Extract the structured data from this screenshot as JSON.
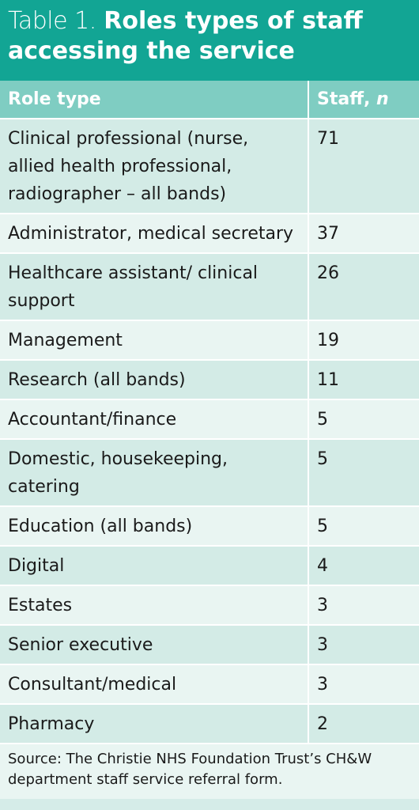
{
  "title": {
    "prefix": "Table 1.",
    "main": "Roles types of staff accessing the service"
  },
  "table": {
    "headers": [
      "Role type",
      "Staff, ",
      "n"
    ],
    "rows": [
      {
        "role": "Clinical professional (nurse, allied health professional, radiographer – all bands)",
        "staff": "71"
      },
      {
        "role": "Administrator, medical secretary",
        "staff": "37"
      },
      {
        "role": "Healthcare assistant/ clinical support",
        "staff": "26"
      },
      {
        "role": "Management",
        "staff": "19"
      },
      {
        "role": "Research (all bands)",
        "staff": "11"
      },
      {
        "role": "Accountant/finance",
        "staff": "5"
      },
      {
        "role": "Domestic, housekeeping, catering",
        "staff": "5"
      },
      {
        "role": "Education (all bands)",
        "staff": "5"
      },
      {
        "role": "Digital",
        "staff": "4"
      },
      {
        "role": "Estates",
        "staff": "3"
      },
      {
        "role": "Senior executive",
        "staff": "3"
      },
      {
        "role": "Consultant/medical",
        "staff": "3"
      },
      {
        "role": "Pharmacy",
        "staff": "2"
      }
    ]
  },
  "source": "Source: The Christie NHS Foundation Trust’s CH&W department staff service referral form.",
  "colors": {
    "title_bg": "#12a594",
    "header_bg": "#7fcdc2",
    "row_dark": "#d3ebe6",
    "row_light": "#e9f5f2"
  }
}
